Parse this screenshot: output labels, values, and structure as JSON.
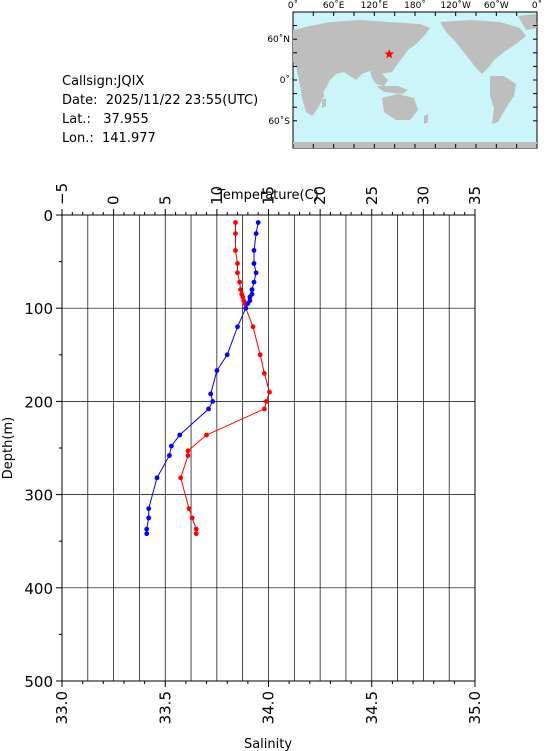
{
  "station": {
    "callsign_label": "Callsign:",
    "callsign": "JQIX",
    "date_label": "Date:",
    "date": "2025/11/22 23:55(UTC)",
    "lat_label": "Lat.:",
    "lat": "37.955",
    "lon_label": "Lon.:",
    "lon": "141.977"
  },
  "map": {
    "lon_ticks": [
      "0˚",
      "60˚E",
      "120˚E",
      "180˚",
      "120˚W",
      "60˚W",
      "0˚"
    ],
    "lat_ticks": [
      "60˚N",
      "0˚",
      "60˚S"
    ],
    "ocean_color": "#ccf5fa",
    "land_color": "#bebebe",
    "marker_color": "#ff0000",
    "marker_lat": 37.955,
    "marker_lon": 141.977
  },
  "chart_data": {
    "type": "line",
    "top_axis_label": "Temperature(C)",
    "bottom_axis_label": "Salinity",
    "ylabel": "Depth(m)",
    "temperature_range": [
      -5,
      35
    ],
    "salinity_range": [
      33.0,
      35.0
    ],
    "depth_range": [
      0,
      500
    ],
    "temperature_ticks": [
      "−5",
      "0",
      "5",
      "10",
      "15",
      "20",
      "25",
      "30",
      "35"
    ],
    "salinity_ticks": [
      "33.0",
      "33.5",
      "34.0",
      "34.5",
      "35.0"
    ],
    "depth_ticks": [
      "0",
      "100",
      "200",
      "300",
      "400",
      "500"
    ],
    "grid": true,
    "series": [
      {
        "quantity": "temperature",
        "color": "#ff0000",
        "points": [
          [
            11.8,
            8
          ],
          [
            11.8,
            20
          ],
          [
            11.8,
            38
          ],
          [
            12.0,
            52
          ],
          [
            12.0,
            62
          ],
          [
            12.2,
            72
          ],
          [
            12.3,
            80
          ],
          [
            12.4,
            85
          ],
          [
            12.5,
            88
          ],
          [
            12.6,
            92
          ],
          [
            12.7,
            95
          ],
          [
            12.8,
            100
          ],
          [
            13.5,
            120
          ],
          [
            14.2,
            150
          ],
          [
            14.6,
            170
          ],
          [
            15.1,
            190
          ],
          [
            14.8,
            200
          ],
          [
            14.6,
            208
          ],
          [
            9.0,
            236
          ],
          [
            7.2,
            253
          ],
          [
            7.2,
            258
          ],
          [
            6.5,
            282
          ],
          [
            7.3,
            315
          ],
          [
            7.6,
            325
          ],
          [
            8.0,
            337
          ],
          [
            8.0,
            342
          ]
        ]
      },
      {
        "quantity": "salinity",
        "color": "#0000ff",
        "points": [
          [
            33.95,
            8
          ],
          [
            33.94,
            20
          ],
          [
            33.93,
            38
          ],
          [
            33.93,
            52
          ],
          [
            33.94,
            62
          ],
          [
            33.93,
            72
          ],
          [
            33.92,
            80
          ],
          [
            33.92,
            85
          ],
          [
            33.91,
            88
          ],
          [
            33.91,
            92
          ],
          [
            33.9,
            95
          ],
          [
            33.89,
            100
          ],
          [
            33.85,
            120
          ],
          [
            33.8,
            150
          ],
          [
            33.75,
            167
          ],
          [
            33.72,
            192
          ],
          [
            33.73,
            200
          ],
          [
            33.71,
            208
          ],
          [
            33.57,
            236
          ],
          [
            33.53,
            248
          ],
          [
            33.52,
            258
          ],
          [
            33.46,
            282
          ],
          [
            33.42,
            315
          ],
          [
            33.42,
            325
          ],
          [
            33.41,
            337
          ],
          [
            33.41,
            342
          ]
        ]
      }
    ]
  }
}
